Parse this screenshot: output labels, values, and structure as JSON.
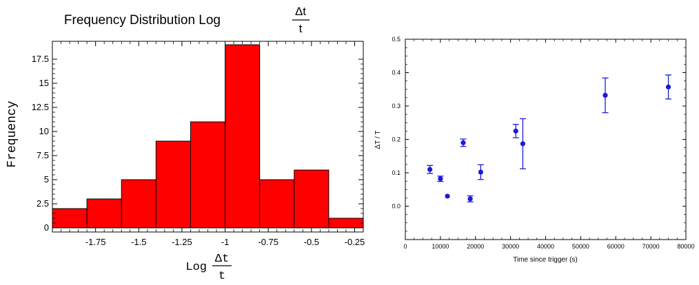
{
  "chart_data": [
    {
      "type": "bar",
      "title": "Frequency Distribution Log",
      "title_fraction": {
        "numerator": "Δt",
        "denominator": "t"
      },
      "ylabel": "Frequency",
      "xlabel": "Log",
      "xlabel_fraction": {
        "numerator": "Δt",
        "denominator": "t"
      },
      "bin_edges": [
        -2.0,
        -1.8,
        -1.6,
        -1.4,
        -1.2,
        -1.0,
        -0.8,
        -0.6,
        -0.4,
        -0.2
      ],
      "values": [
        2,
        3,
        5,
        9,
        11,
        19,
        5,
        6,
        1
      ],
      "xlim": [
        -2.0,
        -0.2
      ],
      "ylim": [
        0,
        19
      ],
      "x_ticks": [
        -1.75,
        -1.5,
        -1.25,
        -1,
        -0.75,
        -0.5,
        -0.25
      ],
      "x_tick_labels": [
        "-1.75",
        "-1.5",
        "-1.25",
        "-1",
        "-0.75",
        "-0.5",
        "-0.25"
      ],
      "y_ticks": [
        0,
        2.5,
        5,
        7.5,
        10,
        12.5,
        15,
        17.5
      ],
      "y_tick_labels": [
        "0",
        "2.5",
        "5",
        "7.5",
        "10",
        "12.5",
        "15",
        "17.5"
      ],
      "bar_color": "#ff0000",
      "grid": false
    },
    {
      "type": "scatter",
      "xlabel": "Time since trigger (s)",
      "ylabel": "ΔT / T",
      "xlim": [
        0,
        80000
      ],
      "ylim": [
        -0.1,
        0.5
      ],
      "x_ticks": [
        0,
        10000,
        20000,
        30000,
        40000,
        50000,
        60000,
        70000,
        80000
      ],
      "x_tick_labels": [
        "0",
        "10000",
        "20000",
        "30000",
        "40000",
        "50000",
        "60000",
        "70000",
        "80000"
      ],
      "y_ticks": [
        0.0,
        0.1,
        0.2,
        0.3,
        0.4,
        0.5
      ],
      "y_tick_labels": [
        "0.0",
        "0.1",
        "0.2",
        "0.3",
        "0.4",
        "0.5"
      ],
      "points": [
        {
          "x": 7000,
          "y": 0.11,
          "err": 0.012
        },
        {
          "x": 10000,
          "y": 0.082,
          "err": 0.008
        },
        {
          "x": 12000,
          "y": 0.03,
          "err": 0.0
        },
        {
          "x": 16500,
          "y": 0.19,
          "err": 0.011
        },
        {
          "x": 18500,
          "y": 0.022,
          "err": 0.009
        },
        {
          "x": 21500,
          "y": 0.102,
          "err": 0.022
        },
        {
          "x": 31500,
          "y": 0.225,
          "err": 0.02
        },
        {
          "x": 33500,
          "y": 0.187,
          "err": 0.075
        },
        {
          "x": 57000,
          "y": 0.332,
          "err": 0.052
        },
        {
          "x": 75000,
          "y": 0.357,
          "err": 0.036
        }
      ],
      "color": "#1a1adc",
      "grid": false
    }
  ]
}
